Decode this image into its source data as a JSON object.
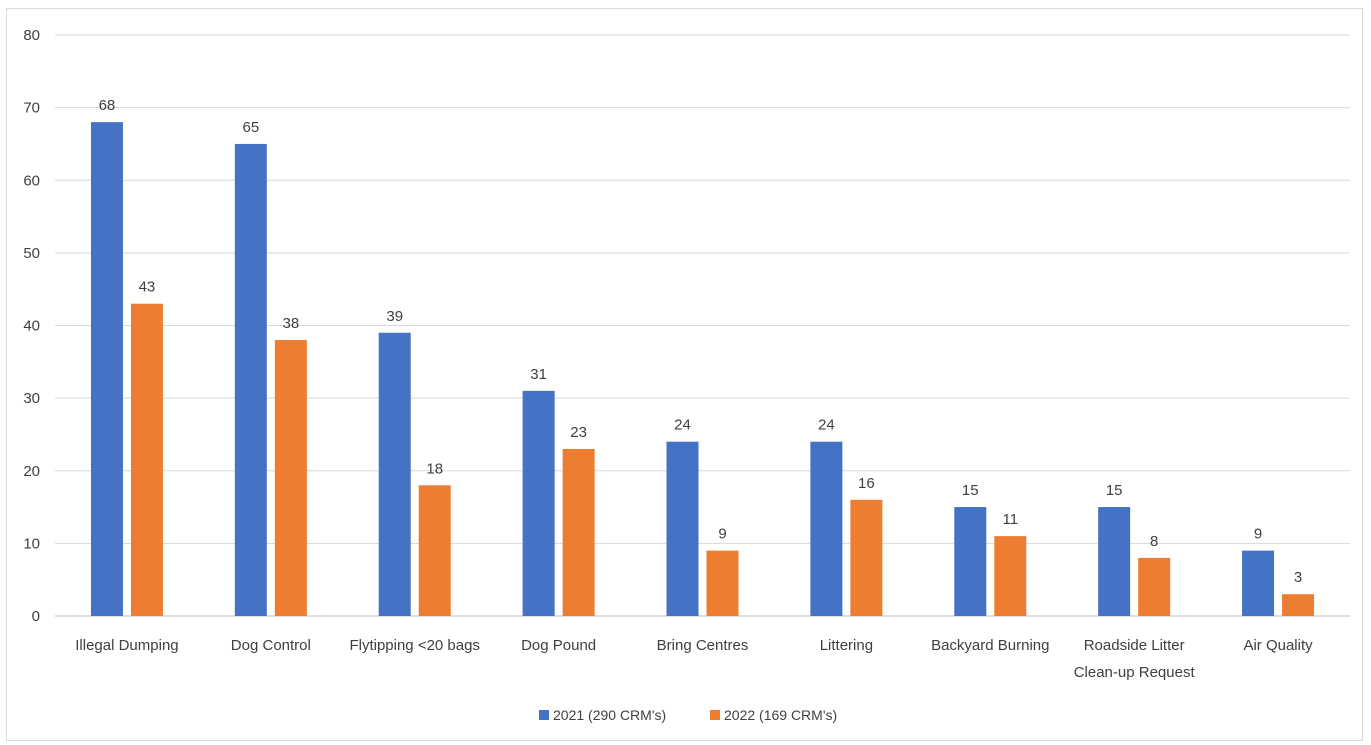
{
  "chart_data": {
    "type": "bar",
    "title": "",
    "xlabel": "",
    "ylabel": "",
    "ylim": [
      0,
      80
    ],
    "yticks": [
      0,
      10,
      20,
      30,
      40,
      50,
      60,
      70,
      80
    ],
    "grid": true,
    "legend_position": "bottom",
    "categories": [
      [
        "Illegal Dumping"
      ],
      [
        "Dog Control"
      ],
      [
        "Flytipping <20 bags"
      ],
      [
        "Dog Pound"
      ],
      [
        "Bring Centres"
      ],
      [
        "Littering"
      ],
      [
        "Backyard Burning"
      ],
      [
        "Roadside Litter",
        "Clean-up Request"
      ],
      [
        "Air Quality"
      ]
    ],
    "series": [
      {
        "name": "2021 (290 CRM's)",
        "color": "#4472c4",
        "values": [
          68,
          65,
          39,
          31,
          24,
          24,
          15,
          15,
          9
        ]
      },
      {
        "name": "2022 (169 CRM's)",
        "color": "#ed7d31",
        "values": [
          43,
          38,
          18,
          23,
          9,
          16,
          11,
          8,
          3
        ]
      }
    ]
  }
}
